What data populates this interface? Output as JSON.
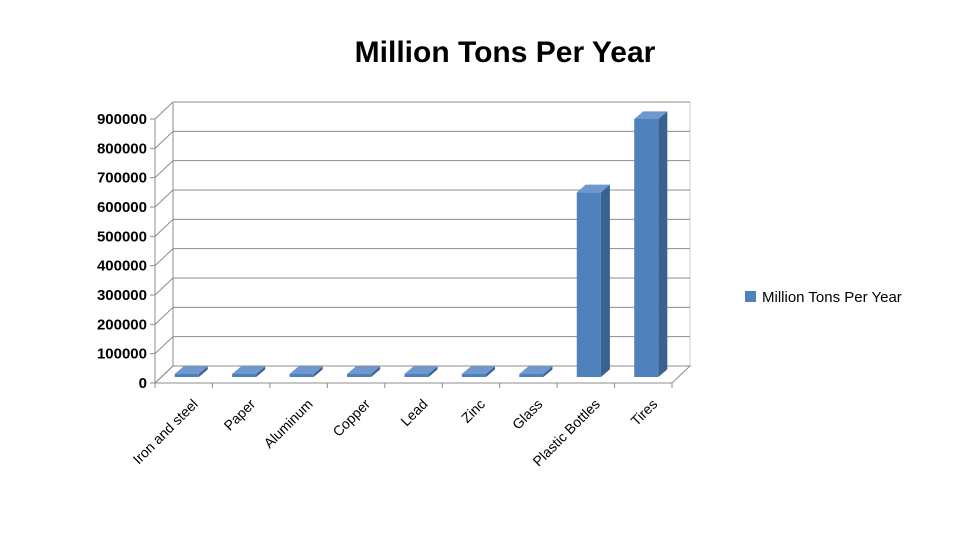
{
  "chart_data": {
    "type": "bar",
    "style": "3d-column",
    "title": "Million Tons Per Year",
    "xlabel": "",
    "ylabel": "",
    "categories": [
      "Iron and steel",
      "Paper",
      "Aluminum",
      "Copper",
      "Lead",
      "Zinc",
      "Glass",
      "Plastic Bottles",
      "Tires"
    ],
    "series": [
      {
        "name": "Million Tons Per Year",
        "color": "#4f81bd",
        "values": [
          0,
          0,
          0,
          0,
          0,
          0,
          0,
          650000,
          900000
        ]
      }
    ],
    "ylim": [
      0,
      900000
    ],
    "yticks": [
      "0",
      "100000",
      "200000",
      "300000",
      "400000",
      "500000",
      "600000",
      "700000",
      "800000",
      "900000"
    ],
    "grid": true,
    "legend": "right"
  }
}
